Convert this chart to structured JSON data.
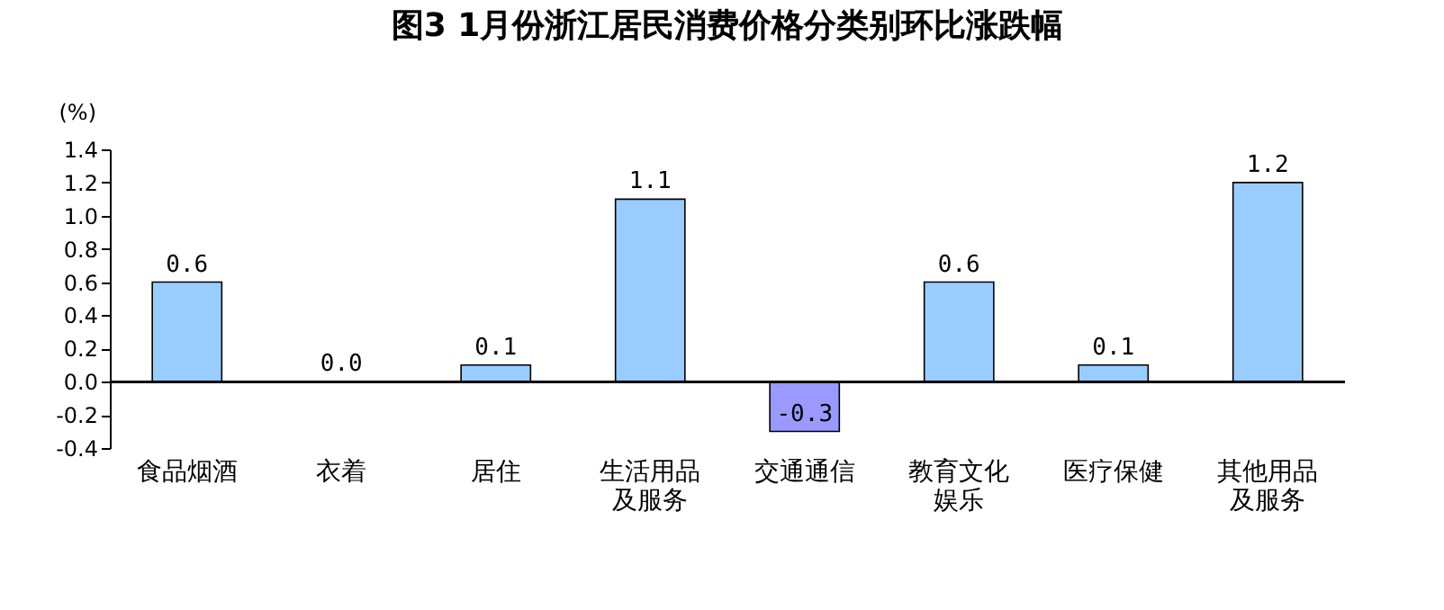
{
  "chart_data": {
    "type": "bar",
    "title": "图3 1月份浙江居民消费价格分类别环比涨跌幅",
    "ylabel": "(%)",
    "categories": [
      "食品烟酒",
      "衣着",
      "居住",
      "生活用品及服务",
      "交通通信",
      "教育文化娱乐",
      "医疗保健",
      "其他用品及服务"
    ],
    "value_labels": [
      "0.6",
      "0.0",
      "0.1",
      "1.1",
      "-0.3",
      "0.6",
      "0.1",
      "1.2"
    ],
    "values": [
      0.6,
      0.0,
      0.1,
      1.1,
      -0.3,
      0.6,
      0.1,
      1.2
    ],
    "colors": [
      "#99ccff",
      "#99ccff",
      "#99ccff",
      "#99ccff",
      "#9999ff",
      "#99ccff",
      "#99ccff",
      "#99ccff"
    ],
    "ylim": [
      -0.4,
      1.4
    ],
    "yticks": [
      {
        "value": -0.4,
        "label": "-0.4"
      },
      {
        "value": -0.2,
        "label": "-0.2"
      },
      {
        "value": 0,
        "label": "0.0"
      },
      {
        "value": 0.2,
        "label": "0.2"
      },
      {
        "value": 0.4,
        "label": "0.4"
      },
      {
        "value": 0.6,
        "label": "0.6"
      },
      {
        "value": 0.8,
        "label": "0.8"
      },
      {
        "value": 1,
        "label": "1.0"
      },
      {
        "value": 1.2,
        "label": "1.2"
      },
      {
        "value": 1.4,
        "label": "1.4"
      }
    ],
    "ref_lines": [
      {
        "axis": "y",
        "value": 0,
        "color": "#000000"
      }
    ],
    "grid": false,
    "legend": false
  }
}
